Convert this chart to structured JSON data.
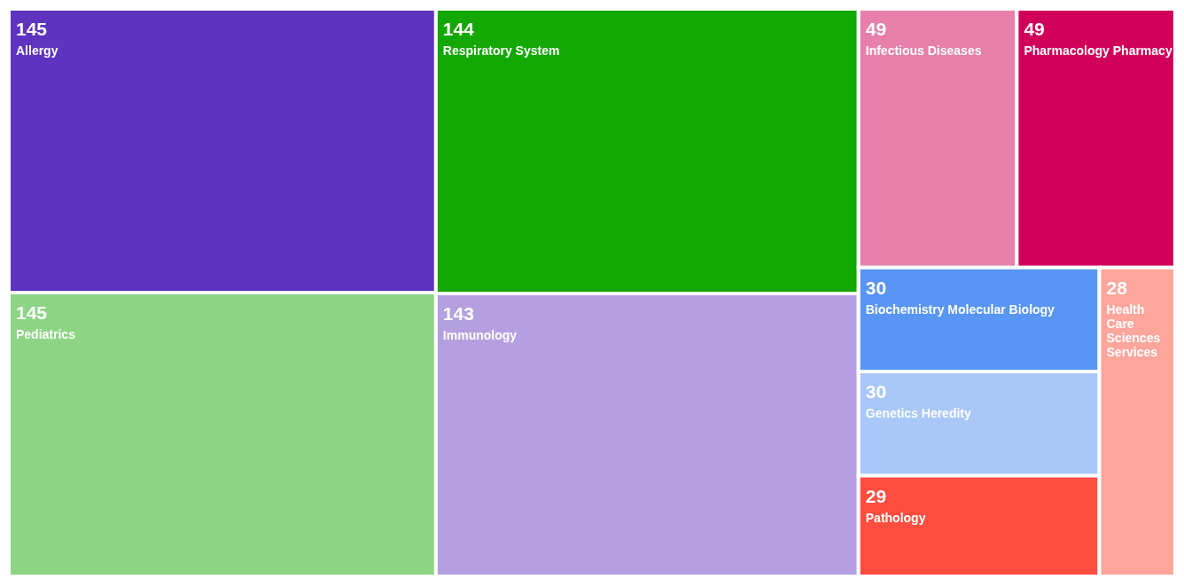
{
  "chart_data": {
    "type": "other",
    "categories": [
      "Allergy",
      "Pediatrics",
      "Respiratory System",
      "Immunology",
      "Infectious Diseases",
      "Pharmacology Pharmacy",
      "Biochemistry Molecular Biology",
      "Genetics Heredity",
      "Pathology",
      "Health Care Sciences Services"
    ],
    "values": [
      145,
      145,
      144,
      143,
      49,
      49,
      30,
      30,
      29,
      28
    ],
    "colors": [
      "#5e33c0",
      "#8dd584",
      "#13a804",
      "#b4a0e0",
      "#e680ab",
      "#d0005a",
      "#5895f4",
      "#a9c8f8",
      "#ff4d3f",
      "#ffa69c"
    ],
    "data_labels": true
  }
}
